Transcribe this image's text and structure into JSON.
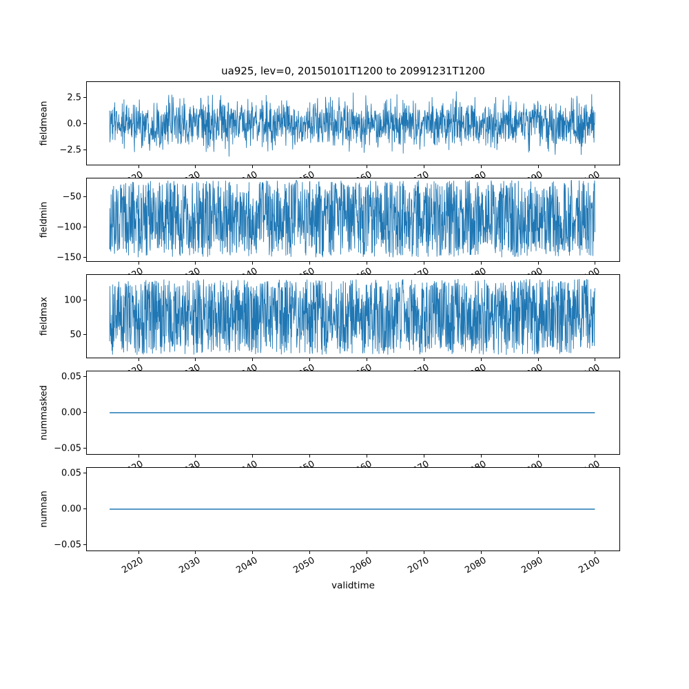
{
  "title": "ua925, lev=0, 20150101T1200 to 20991231T1200",
  "xlabel": "validtime",
  "colors": {
    "line": "#1f77b4",
    "axis": "#000000",
    "background": "#ffffff"
  },
  "x_axis": {
    "xlim": [
      2011.0,
      2104.3
    ],
    "data_x_range": [
      2015,
      2100
    ],
    "ticks": [
      2020,
      2030,
      2040,
      2050,
      2060,
      2070,
      2080,
      2090,
      2100
    ],
    "tick_labels": [
      "2020",
      "2030",
      "2040",
      "2050",
      "2060",
      "2070",
      "2080",
      "2090",
      "2100"
    ],
    "tick_rotation_deg": 30
  },
  "chart_data": [
    {
      "type": "line",
      "name": "fieldmean",
      "ylabel": "fieldmean",
      "ylim": [
        -3.9,
        4.05
      ],
      "yticks": [
        {
          "v": 2.5,
          "label": "2.5"
        },
        {
          "v": 0.0,
          "label": "0.0"
        },
        {
          "v": -2.5,
          "label": "−2.5"
        }
      ],
      "series": {
        "kind": "gauss",
        "mean": 0,
        "sigma": 1.15,
        "clip": [
          -3.6,
          3.7
        ]
      },
      "description": "Dense twice-daily noisy series oscillating around 0, mostly within ±2.5, spikes to about ±3.5"
    },
    {
      "type": "line",
      "name": "fieldmin",
      "ylabel": "fieldmin",
      "ylim": [
        -156,
        -19
      ],
      "yticks": [
        {
          "v": -50,
          "label": "−50"
        },
        {
          "v": -100,
          "label": "−100"
        },
        {
          "v": -150,
          "label": "−150"
        }
      ],
      "series": {
        "kind": "uniform",
        "range": [
          -150,
          -22
        ]
      },
      "description": "Dense noisy series filling roughly −150 to −25"
    },
    {
      "type": "line",
      "name": "fieldmax",
      "ylabel": "fieldmax",
      "ylim": [
        16,
        138
      ],
      "yticks": [
        {
          "v": 100,
          "label": "100"
        },
        {
          "v": 50,
          "label": "50"
        }
      ],
      "series": {
        "kind": "uniform",
        "range": [
          20,
          132
        ]
      },
      "description": "Dense noisy series filling roughly 20 to 130"
    },
    {
      "type": "line",
      "name": "nummasked",
      "ylabel": "nummasked",
      "ylim": [
        -0.0575,
        0.0575
      ],
      "yticks": [
        {
          "v": 0.05,
          "label": "0.05"
        },
        {
          "v": 0.0,
          "label": "0.00"
        },
        {
          "v": -0.05,
          "label": "−0.05"
        }
      ],
      "series": {
        "kind": "const",
        "value": 0
      },
      "description": "Constant 0 for the whole period"
    },
    {
      "type": "line",
      "name": "numnan",
      "ylabel": "numnan",
      "ylim": [
        -0.0575,
        0.0575
      ],
      "yticks": [
        {
          "v": 0.05,
          "label": "0.05"
        },
        {
          "v": 0.0,
          "label": "0.00"
        },
        {
          "v": -0.05,
          "label": "−0.05"
        }
      ],
      "series": {
        "kind": "const",
        "value": 0
      },
      "description": "Constant 0 for the whole period"
    }
  ]
}
